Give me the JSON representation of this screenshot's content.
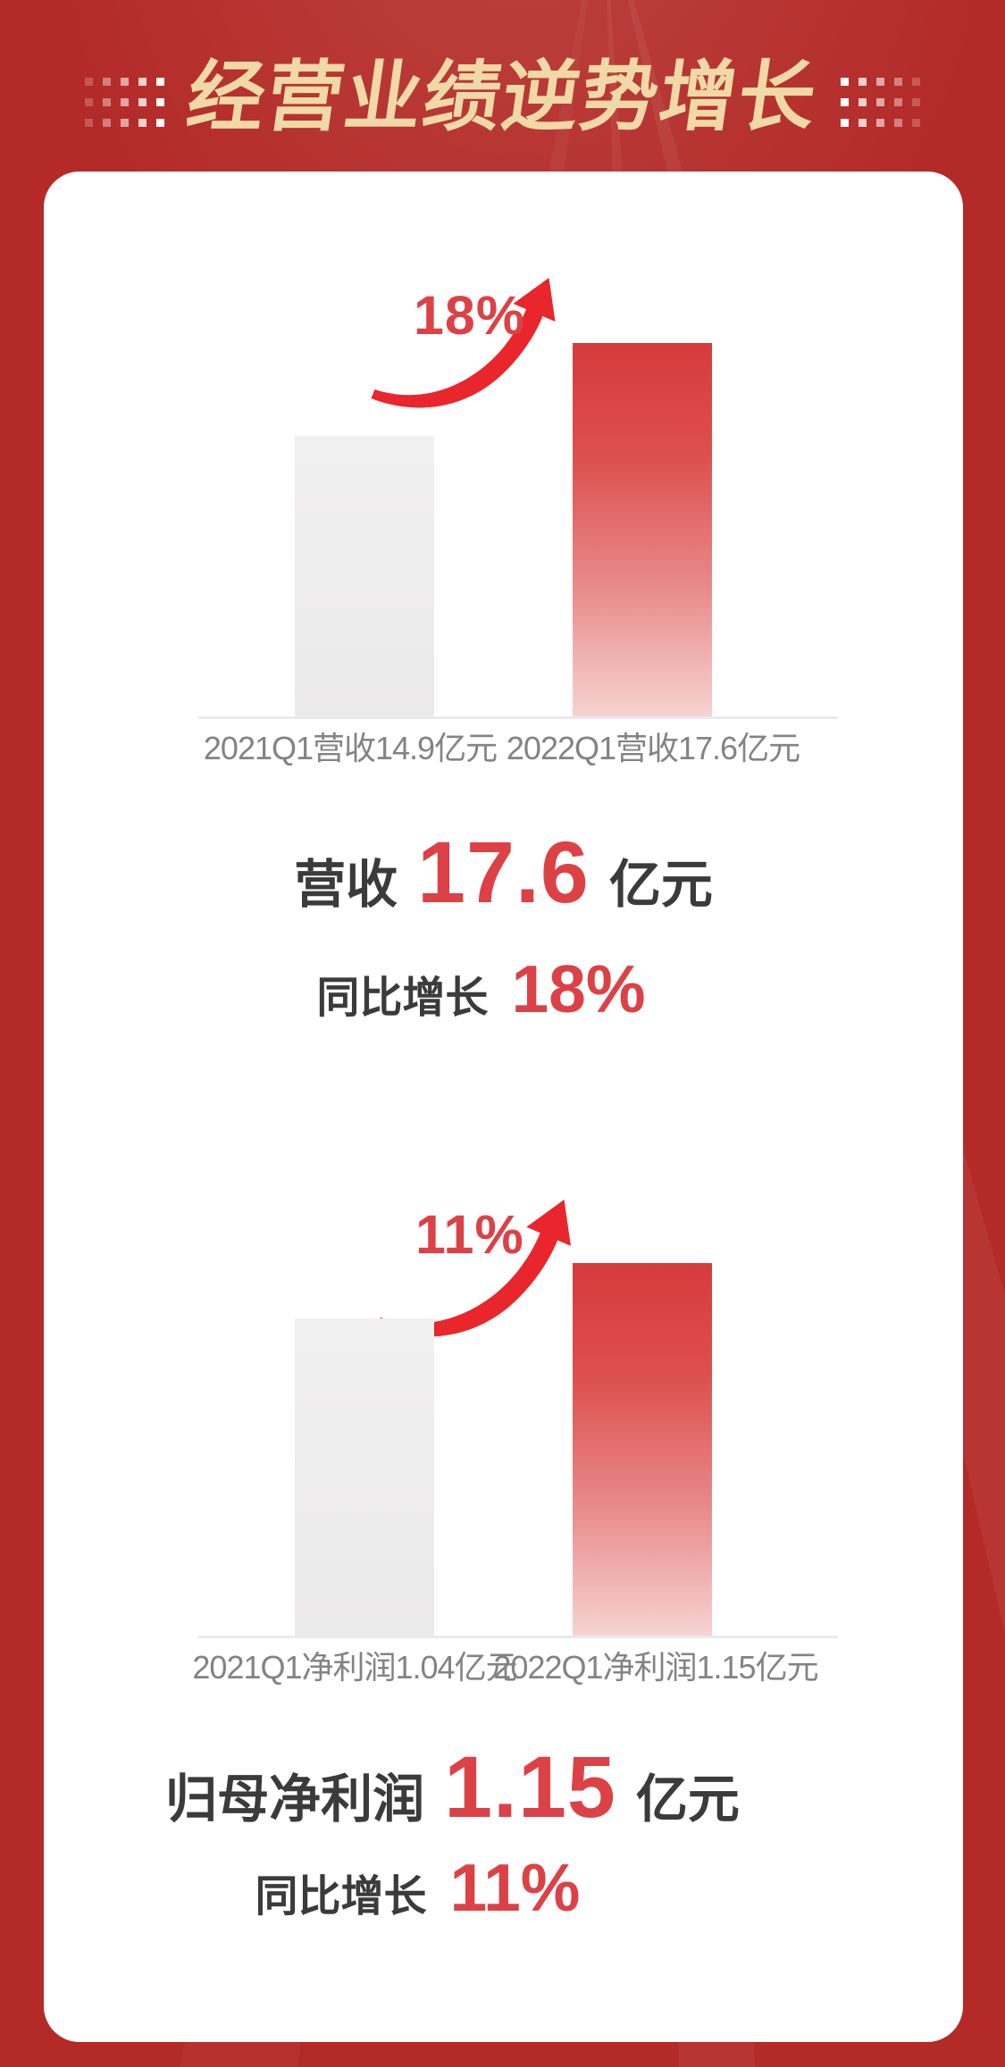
{
  "header": {
    "title": "经营业绩逆势增长"
  },
  "colors": {
    "background_red": "#b32a27",
    "title_cream": "#f0d9a6",
    "accent_red": "#dc4146",
    "arrow_red": "#e8262b",
    "dark_text": "#3b3b3b",
    "label_gray": "#838383",
    "bar_gray": "#f0efef",
    "bar_red_top": "#d73b3b",
    "bar_red_bottom": "#f6d3d1",
    "card_white": "#ffffff"
  },
  "decor": {
    "dot_rows": 3,
    "dot_cols": 5,
    "dot_opacities": [
      0.22,
      0.4,
      0.58,
      0.78,
      1
    ]
  },
  "sections": [
    {
      "name": "revenue",
      "growth": "18%",
      "bars": [
        {
          "label": "2021Q1营收14.9亿元"
        },
        {
          "label": "2022Q1营收17.6亿元"
        }
      ],
      "headline": {
        "prefix": "营收",
        "value": "17.6",
        "suffix": "亿元"
      },
      "subline": {
        "prefix": "同比增长",
        "value": "18%"
      }
    },
    {
      "name": "net_profit",
      "growth": "11%",
      "bars": [
        {
          "label": "2021Q1净利润1.04亿元"
        },
        {
          "label": "2022Q1净利润1.15亿元"
        }
      ],
      "headline": {
        "prefix": "归母净利润",
        "value": "1.15",
        "suffix": "亿元"
      },
      "subline": {
        "prefix": "同比增长",
        "value": "11%"
      }
    }
  ],
  "chart_data": [
    {
      "type": "bar",
      "title": "营收同比增长18%",
      "categories": [
        "2021Q1",
        "2022Q1"
      ],
      "values": [
        14.9,
        17.6
      ],
      "unit": "亿元",
      "growth_percent": 18,
      "series_colors": [
        "#f0efef",
        "#d73b3b"
      ],
      "value_labels": [
        "2021Q1营收14.9亿元",
        "2022Q1营收17.6亿元"
      ],
      "legend": "off",
      "grid": "off",
      "baseline_color": "#eaeaea"
    },
    {
      "type": "bar",
      "title": "归母净利润同比增长11%",
      "categories": [
        "2021Q1",
        "2022Q1"
      ],
      "values": [
        1.04,
        1.15
      ],
      "unit": "亿元",
      "growth_percent": 11,
      "series_colors": [
        "#f0efef",
        "#d73b3b"
      ],
      "value_labels": [
        "2021Q1净利润1.04亿元",
        "2022Q1净利润1.15亿元"
      ],
      "legend": "off",
      "grid": "off",
      "baseline_color": "#eaeaea"
    }
  ]
}
